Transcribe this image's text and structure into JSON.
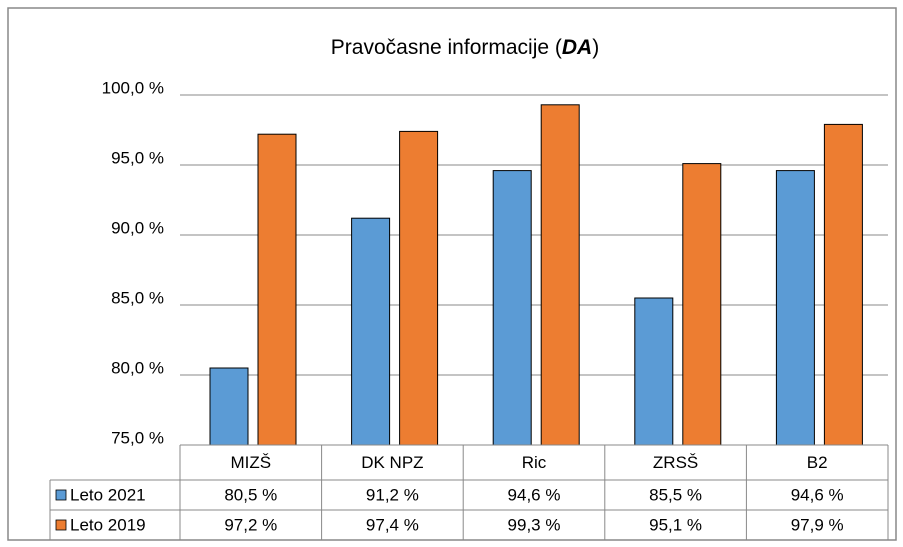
{
  "chart_data": {
    "type": "bar",
    "title": [
      "Pravočasne informacije (",
      "DA",
      ")"
    ],
    "categories": [
      "MIZŠ",
      "DK NPZ",
      "Ric",
      "ZRSŠ",
      "B2"
    ],
    "series": [
      {
        "name": "Leto 2021",
        "color": "#5b9bd5",
        "values": [
          80.5,
          91.2,
          94.6,
          85.5,
          94.6
        ],
        "value_labels": [
          "80,5 %",
          "91,2 %",
          "94,6 %",
          "85,5 %",
          "94,6 %"
        ]
      },
      {
        "name": "Leto 2019",
        "color": "#ed7d31",
        "values": [
          97.2,
          97.4,
          99.3,
          95.1,
          97.9
        ],
        "value_labels": [
          "97,2 %",
          "97,4 %",
          "99,3 %",
          "95,1 %",
          "97,9 %"
        ]
      }
    ],
    "ylim": [
      75,
      100
    ],
    "yticks": [
      {
        "value": 75,
        "label": "75,0 %"
      },
      {
        "value": 80,
        "label": "80,0 %"
      },
      {
        "value": 85,
        "label": "85,0 %"
      },
      {
        "value": 90,
        "label": "90,0 %"
      },
      {
        "value": 95,
        "label": "95,0 %"
      },
      {
        "value": 100,
        "label": "100,0 %"
      }
    ],
    "grid": true
  }
}
